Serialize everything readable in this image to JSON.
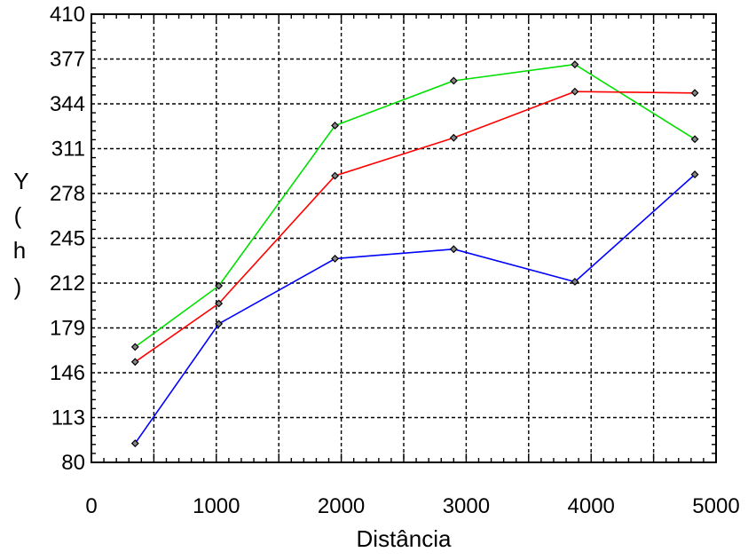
{
  "chart_data": {
    "type": "line",
    "title": "",
    "xlabel": "Distância",
    "ylabel": "Y\n(\nh\n)",
    "xlim": [
      0,
      5000
    ],
    "ylim": [
      80,
      410
    ],
    "xticks": [
      0,
      1000,
      2000,
      3000,
      4000,
      5000
    ],
    "yticks": [
      80,
      113,
      146,
      179,
      212,
      245,
      278,
      311,
      344,
      377,
      410
    ],
    "grid": true,
    "legend": "none",
    "series": [
      {
        "color": "#00e000",
        "points": [
          [
            350,
            165
          ],
          [
            1020,
            210
          ],
          [
            1950,
            328
          ],
          [
            2900,
            361
          ],
          [
            3870,
            373
          ],
          [
            4830,
            318
          ]
        ]
      },
      {
        "color": "#ff0000",
        "points": [
          [
            350,
            154
          ],
          [
            1020,
            197
          ],
          [
            1950,
            291
          ],
          [
            2900,
            319
          ],
          [
            3870,
            353
          ],
          [
            4830,
            352
          ]
        ]
      },
      {
        "color": "#0000ff",
        "points": [
          [
            350,
            94
          ],
          [
            1020,
            182
          ],
          [
            1950,
            230
          ],
          [
            2900,
            237
          ],
          [
            3870,
            213
          ],
          [
            4830,
            292
          ]
        ]
      }
    ]
  }
}
